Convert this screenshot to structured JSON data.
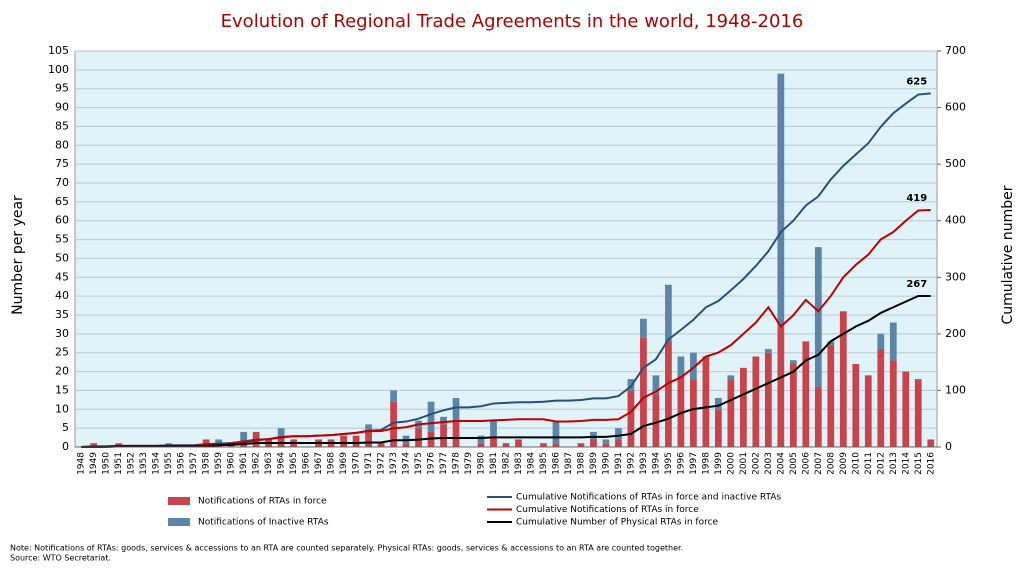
{
  "chart_data": {
    "type": "bar_line",
    "title": "Evolution of Regional Trade Agreements in the world, 1948-2016",
    "y_label": "Number per year",
    "y2_label": "Cumulative number",
    "note": "Note: Notifications of RTAs: goods, services & accessions to an RTA are counted separately. Physical RTAs: goods, services & accessions to an RTA are counted together.",
    "source": "Source: WTO Secretariat.",
    "categories": [
      "1948",
      "1949",
      "1950",
      "1951",
      "1952",
      "1953",
      "1954",
      "1955",
      "1956",
      "1957",
      "1958",
      "1959",
      "1960",
      "1961",
      "1962",
      "1963",
      "1964",
      "1965",
      "1966",
      "1967",
      "1968",
      "1969",
      "1970",
      "1971",
      "1972",
      "1973",
      "1974",
      "1975",
      "1976",
      "1977",
      "1978",
      "1979",
      "1980",
      "1981",
      "1982",
      "1983",
      "1984",
      "1985",
      "1986",
      "1987",
      "1988",
      "1989",
      "1990",
      "1991",
      "1992",
      "1993",
      "1994",
      "1995",
      "1996",
      "1997",
      "1998",
      "1999",
      "2000",
      "2001",
      "2002",
      "2003",
      "2004",
      "2005",
      "2006",
      "2007",
      "2008",
      "2009",
      "2010",
      "2011",
      "2012",
      "2013",
      "2014",
      "2015",
      "2016"
    ],
    "ylim": [
      0,
      105
    ],
    "yticks": [
      0,
      5,
      10,
      15,
      20,
      25,
      30,
      35,
      40,
      45,
      50,
      55,
      60,
      65,
      70,
      75,
      80,
      85,
      90,
      95,
      100,
      105
    ],
    "y2lim": [
      0,
      700
    ],
    "y2ticks": [
      0,
      100,
      200,
      300,
      400,
      500,
      600,
      700
    ],
    "grid": true,
    "stacked": true,
    "series": [
      {
        "name": "Notifications of RTAs in force",
        "kind": "bar",
        "color": "#c8434a",
        "values": [
          0,
          1,
          0,
          1,
          0,
          0,
          0,
          0,
          0,
          0,
          2,
          1,
          1,
          2,
          4,
          2,
          3,
          2,
          0,
          2,
          2,
          3,
          3,
          4,
          1,
          12,
          1,
          5,
          4,
          6,
          7,
          0,
          1,
          3,
          1,
          2,
          0,
          1,
          1,
          0,
          1,
          2,
          1,
          2,
          15,
          29,
          14,
          28,
          19,
          18,
          24,
          10,
          18,
          21,
          24,
          25,
          32,
          22,
          28,
          16,
          27,
          36,
          22,
          19,
          26,
          23,
          20,
          18,
          2
        ]
      },
      {
        "name": "Notifications of Inactive RTAs",
        "kind": "bar",
        "color": "#5b86a8",
        "values": [
          0,
          0,
          0,
          0,
          0,
          0,
          0,
          1,
          0,
          0,
          0,
          1,
          0,
          2,
          0,
          0,
          2,
          0,
          0,
          0,
          0,
          0,
          0,
          2,
          0,
          3,
          2,
          2,
          8,
          2,
          6,
          0,
          2,
          4,
          0,
          0,
          0,
          0,
          6,
          0,
          0,
          2,
          1,
          3,
          3,
          5,
          5,
          15,
          5,
          7,
          0,
          3,
          1,
          0,
          0,
          1,
          67,
          1,
          0,
          37,
          1,
          0,
          0,
          0,
          4,
          10,
          0,
          0,
          0
        ]
      },
      {
        "name": "Cumulative Notifications of RTAs in force and inactive RTAs",
        "kind": "line",
        "axis": "y2",
        "color": "#2b4f7c",
        "end_label": 625,
        "values": [
          0,
          1,
          1,
          2,
          2,
          2,
          2,
          3,
          3,
          3,
          5,
          6,
          7,
          10,
          13,
          14,
          18,
          19,
          19,
          20,
          21,
          23,
          25,
          29,
          30,
          43,
          45,
          50,
          58,
          65,
          70,
          70,
          72,
          77,
          78,
          79,
          79,
          80,
          82,
          82,
          83,
          86,
          86,
          90,
          107,
          140,
          155,
          190,
          207,
          225,
          247,
          258,
          277,
          297,
          320,
          346,
          380,
          400,
          427,
          443,
          473,
          497,
          517,
          537,
          566,
          590,
          607,
          623,
          625
        ]
      },
      {
        "name": "Cumulative Notifications of RTAs in force",
        "kind": "line",
        "axis": "y2",
        "color": "#c00000",
        "end_label": 419,
        "values": [
          0,
          1,
          1,
          2,
          2,
          2,
          2,
          2,
          2,
          2,
          4,
          5,
          6,
          8,
          12,
          14,
          17,
          19,
          19,
          20,
          21,
          23,
          25,
          28,
          28,
          33,
          35,
          40,
          42,
          44,
          46,
          46,
          46,
          47,
          48,
          49,
          49,
          49,
          45,
          45,
          46,
          48,
          48,
          49,
          62,
          87,
          98,
          113,
          123,
          140,
          160,
          167,
          180,
          200,
          220,
          247,
          213,
          233,
          260,
          240,
          267,
          300,
          322,
          340,
          367,
          380,
          400,
          418,
          419
        ]
      },
      {
        "name": "Cumulative Number of Physical RTAs in force",
        "kind": "line",
        "axis": "y2",
        "color": "#000000",
        "end_label": 267,
        "values": [
          0,
          0,
          0,
          1,
          1,
          1,
          1,
          1,
          1,
          1,
          2,
          3,
          4,
          5,
          7,
          7,
          7,
          7,
          7,
          7,
          7,
          7,
          7,
          8,
          8,
          12,
          12,
          13,
          15,
          16,
          16,
          16,
          16,
          17,
          17,
          17,
          17,
          17,
          17,
          17,
          17,
          18,
          18,
          20,
          23,
          37,
          43,
          50,
          60,
          67,
          70,
          73,
          83,
          93,
          103,
          113,
          123,
          133,
          153,
          163,
          187,
          200,
          213,
          223,
          237,
          247,
          257,
          267,
          267
        ]
      }
    ]
  }
}
